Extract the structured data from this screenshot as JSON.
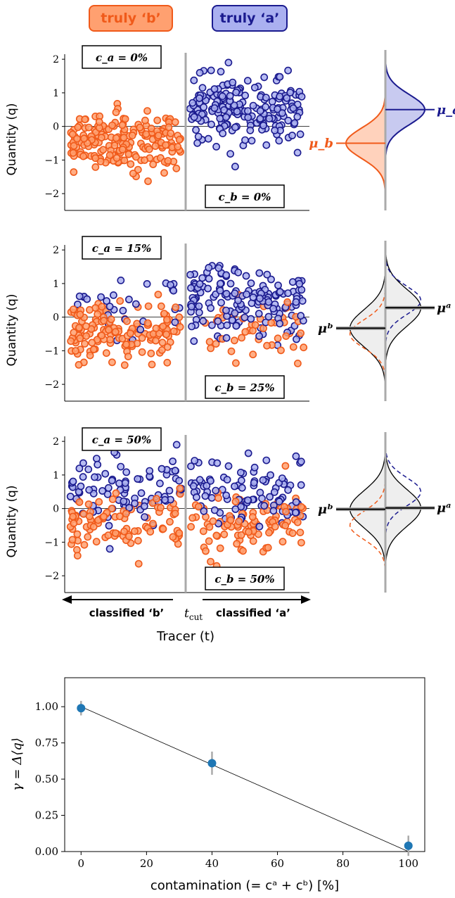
{
  "header": {
    "truly_b": "truly ‘b’",
    "truly_a": "truly ‘a’",
    "colors": {
      "b_fill": "#ffa070",
      "b_edge": "#f05a1a",
      "a_fill": "#aab0f0",
      "a_edge": "#1b1b8f"
    }
  },
  "panels": [
    {
      "ca_label": "c_a = 0%",
      "cb_label": "c_b = 0%",
      "ylabel": "Quantity (q)",
      "mu_left": "μ_b",
      "mu_right": "μ_a",
      "mu_left_value": -0.5,
      "mu_right_value": 0.5,
      "ca_frac": 0.0,
      "cb_frac": 0.0
    },
    {
      "ca_label": "c_a = 15%",
      "cb_label": "c_b = 25%",
      "ylabel": "Quantity (q)",
      "mu_left": "μᵇ",
      "mu_right": "μᵃ",
      "mu_left_value": -0.33,
      "mu_right_value": 0.28,
      "ca_frac": 0.15,
      "cb_frac": 0.25
    },
    {
      "ca_label": "c_a = 50%",
      "cb_label": "c_b = 50%",
      "ylabel": "Quantity (q)",
      "mu_left": "μᵇ",
      "mu_right": "μᵃ",
      "mu_left_value": -0.02,
      "mu_right_value": 0.02,
      "ca_frac": 0.5,
      "cb_frac": 0.5
    }
  ],
  "scatter_axis": {
    "yticks": [
      "2",
      "1",
      "0",
      "−1",
      "−2"
    ],
    "ylim": [
      -2.5,
      2.15
    ]
  },
  "bottom_axis": {
    "classified_b": "classified ‘b’",
    "tcut": "t",
    "tcut_sub": "cut",
    "classified_a": "classified ‘a’",
    "xlabel": "Tracer (t)"
  },
  "chart_data": {
    "type": "scatter",
    "xlabel": "contamination (= cᵃ + cᵇ) [%]",
    "ylabel": "γ = Δ⟨q⟩",
    "xlim": [
      -5,
      105
    ],
    "ylim": [
      0,
      1.2
    ],
    "xticks": [
      0,
      20,
      40,
      60,
      80,
      100
    ],
    "yticks": [
      "0.00",
      "0.25",
      "0.50",
      "0.75",
      "1.00"
    ],
    "x": [
      0,
      40,
      100
    ],
    "y": [
      0.99,
      0.61,
      0.04
    ],
    "yerr": [
      0.05,
      0.08,
      0.07
    ],
    "fit_line": [
      [
        0,
        1.0
      ],
      [
        100,
        0.0
      ]
    ],
    "color": "#1f77b4"
  }
}
